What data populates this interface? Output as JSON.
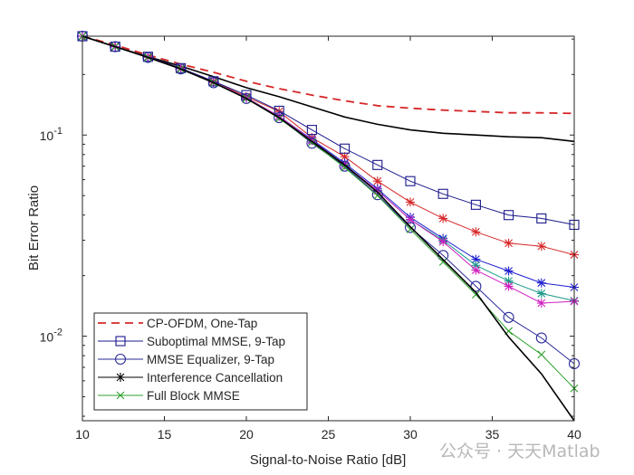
{
  "chart_data": {
    "type": "line",
    "title": "",
    "xlabel": "Signal-to-Noise Ratio [dB]",
    "ylabel": "Bit Error Ratio",
    "xlim": [
      10,
      40
    ],
    "ylim": [
      0.0038,
      0.31
    ],
    "yscale": "log",
    "grid": false,
    "legend_placement": "bottom-left",
    "xticks": [
      {
        "value": 10,
        "label": "10"
      },
      {
        "value": 15,
        "label": "15"
      },
      {
        "value": 20,
        "label": "20"
      },
      {
        "value": 25,
        "label": "25"
      },
      {
        "value": 30,
        "label": "30"
      },
      {
        "value": 35,
        "label": "35"
      },
      {
        "value": 40,
        "label": "40"
      }
    ],
    "yticks": [
      {
        "value": 0.01,
        "base": "10",
        "exp": "-2"
      },
      {
        "value": 0.1,
        "base": "10",
        "exp": "-1"
      }
    ],
    "x": [
      10,
      12,
      14,
      16,
      18,
      20,
      22,
      24,
      26,
      28,
      30,
      32,
      34,
      36,
      38,
      40
    ],
    "series": [
      {
        "name": "CP-OFDM, One-Tap",
        "color": "#d62728",
        "style": "dashed",
        "marker": "none",
        "legend": true,
        "values": [
          0.31,
          0.28,
          0.25,
          0.225,
          0.205,
          0.185,
          0.17,
          0.158,
          0.148,
          0.14,
          0.136,
          0.133,
          0.131,
          0.129,
          0.129,
          0.128
        ]
      },
      {
        "name": "Suboptimal MMSE, 9-Tap",
        "color": "#1a1a8c",
        "style": "solid",
        "marker": "square",
        "legend": true,
        "values": [
          0.31,
          0.275,
          0.245,
          0.215,
          0.185,
          0.158,
          0.132,
          0.106,
          0.0856,
          0.071,
          0.059,
          0.051,
          0.045,
          0.04,
          0.0385,
          0.0358
        ]
      },
      {
        "name": "MMSE Equalizer, 9-Tap",
        "color": "#2a2a9a",
        "style": "solid",
        "marker": "circle",
        "legend": true,
        "values": [
          0.31,
          0.275,
          0.243,
          0.213,
          0.182,
          0.152,
          0.122,
          0.091,
          0.07,
          0.0505,
          0.0347,
          0.0252,
          0.0177,
          0.0124,
          0.0098,
          0.0073
        ]
      },
      {
        "name": "Interference Cancellation",
        "color": "#000000",
        "style": "solid",
        "marker": "star",
        "legend": true,
        "plot_marker": false,
        "values": [
          0.31,
          0.275,
          0.243,
          0.213,
          0.182,
          0.152,
          0.122,
          0.093,
          0.071,
          0.052,
          0.035,
          0.024,
          0.0165,
          0.0099,
          0.0065,
          0.0038
        ]
      },
      {
        "name": "Full Block MMSE",
        "color": "#2ca02c",
        "style": "solid",
        "marker": "x",
        "legend": true,
        "values": [
          0.31,
          0.275,
          0.243,
          0.213,
          0.182,
          0.152,
          0.121,
          0.092,
          0.069,
          0.05,
          0.034,
          0.0234,
          0.0161,
          0.0106,
          0.0081,
          0.0055
        ]
      },
      {
        "color": "#000000",
        "style": "solid",
        "marker": "none",
        "legend": false,
        "values": [
          0.31,
          0.275,
          0.245,
          0.22,
          0.195,
          0.172,
          0.155,
          0.138,
          0.123,
          0.113,
          0.106,
          0.102,
          0.1,
          0.098,
          0.097,
          0.093
        ]
      },
      {
        "color": "#d62728",
        "style": "solid",
        "marker": "star",
        "legend": false,
        "values": [
          0.31,
          0.275,
          0.245,
          0.215,
          0.185,
          0.155,
          0.131,
          0.097,
          0.078,
          0.059,
          0.0464,
          0.0385,
          0.033,
          0.029,
          0.028,
          0.0254
        ]
      },
      {
        "color": "#1f1fd0",
        "style": "solid",
        "marker": "star",
        "legend": false,
        "values": [
          0.31,
          0.275,
          0.244,
          0.214,
          0.183,
          0.153,
          0.124,
          0.095,
          0.0725,
          0.054,
          0.039,
          0.0306,
          0.0241,
          0.0211,
          0.0184,
          0.0175
        ]
      },
      {
        "color": "#1a9a8a",
        "style": "solid",
        "marker": "star",
        "legend": false,
        "values": [
          0.31,
          0.275,
          0.244,
          0.214,
          0.183,
          0.153,
          0.124,
          0.094,
          0.071,
          0.053,
          0.038,
          0.03,
          0.0225,
          0.0188,
          0.0163,
          0.015
        ]
      },
      {
        "color": "#d020c0",
        "style": "solid",
        "marker": "star",
        "legend": false,
        "values": [
          0.31,
          0.275,
          0.244,
          0.214,
          0.183,
          0.153,
          0.124,
          0.094,
          0.071,
          0.053,
          0.038,
          0.0295,
          0.0213,
          0.0177,
          0.0146,
          0.0149
        ]
      }
    ]
  },
  "watermark": "公众号 · 天天Matlab"
}
